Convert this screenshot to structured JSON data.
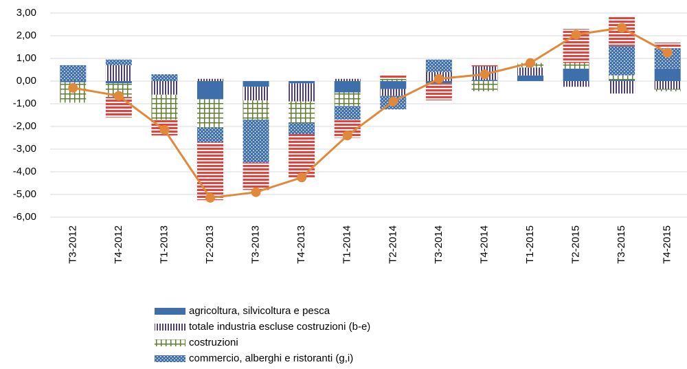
{
  "chart_data": {
    "type": "stacked-bar-line",
    "categories": [
      "T3-2012",
      "T4-2012",
      "T1-2013",
      "T2-2013",
      "T3-2013",
      "T4-2013",
      "T1-2014",
      "T2-2014",
      "T3-2014",
      "T4-2014",
      "T1-2015",
      "T2-2015",
      "T3-2015",
      "T4-2015"
    ],
    "series": [
      {
        "name": "agricoltura, silvicoltura e pesca",
        "color": "#3f6faa",
        "pattern": "solid",
        "values": [
          -0.05,
          -0.1,
          0,
          -0.8,
          -0.25,
          -0.1,
          -0.5,
          -0.35,
          -0.1,
          0.05,
          0.25,
          0.55,
          0.05,
          0.55
        ]
      },
      {
        "name": "totale industria escluse costruzioni (b-e)",
        "color": "#4f3f6f",
        "pattern": "vertical",
        "values": [
          0,
          0.7,
          -0.6,
          0.1,
          -0.6,
          -0.8,
          0.1,
          -0.3,
          0.4,
          0.6,
          0.35,
          -0.25,
          -0.55,
          -0.35
        ]
      },
      {
        "name": "costruzioni",
        "color": "#5e7d2e",
        "pattern": "cross",
        "values": [
          -0.9,
          -0.6,
          -1.1,
          -1.25,
          -0.85,
          -0.95,
          -0.6,
          0.1,
          0,
          -0.45,
          0.2,
          0.25,
          0.2,
          -0.1
        ]
      },
      {
        "name": "commercio, alberghi e ristoranti (g,i)",
        "color": "#3f6faa",
        "pattern": "dots",
        "values": [
          0.7,
          0.25,
          0.3,
          -0.65,
          -1.9,
          -0.5,
          -0.6,
          -0.6,
          0.55,
          0,
          0,
          0,
          1.3,
          0.9
        ]
      },
      {
        "color": "#e8413c",
        "pattern": "horizontal",
        "values": [
          0,
          -0.9,
          -0.7,
          -2.55,
          -1.2,
          -1.9,
          -0.8,
          0.15,
          -0.75,
          0.07,
          0,
          1.5,
          1.3,
          0.25
        ]
      }
    ],
    "line": {
      "color": "#e0893a",
      "values": [
        -0.3,
        -0.65,
        -2.15,
        -5.15,
        -4.9,
        -4.25,
        -2.4,
        -0.9,
        0.1,
        0.3,
        0.8,
        2.05,
        2.35,
        1.25
      ]
    },
    "ylim": [
      -6,
      3
    ],
    "yticks": [
      {
        "value": -6,
        "label": "-6,00"
      },
      {
        "value": -5,
        "label": "-5,00"
      },
      {
        "value": -4,
        "label": "-4,00"
      },
      {
        "value": -3,
        "label": "-3,00"
      },
      {
        "value": -2,
        "label": "-2,00"
      },
      {
        "value": -1,
        "label": "-1,00"
      },
      {
        "value": 0,
        "label": "0,00"
      },
      {
        "value": 1,
        "label": "1,00"
      },
      {
        "value": 2,
        "label": "2,00"
      },
      {
        "value": 3,
        "label": "3,00"
      }
    ],
    "grid": true,
    "legend": "bottom"
  }
}
